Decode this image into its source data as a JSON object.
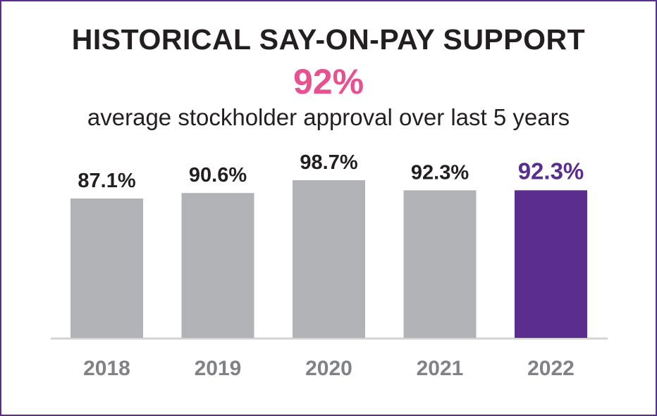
{
  "header": {
    "title": "HISTORICAL SAY-ON-PAY SUPPORT",
    "headline_value": "92%",
    "subtitle": "average stockholder approval over last 5 years"
  },
  "colors": {
    "border": "#5b2d8e",
    "bar_default": "#b1b3b6",
    "bar_highlight": "#5b2d8e",
    "headline": "#e8518f",
    "text_dark": "#231f20",
    "axis_labels": "#808285",
    "baseline": "#d1d3d4"
  },
  "chart_data": {
    "type": "bar",
    "title": "HISTORICAL SAY-ON-PAY SUPPORT",
    "xlabel": "",
    "ylabel": "",
    "categories": [
      "2018",
      "2019",
      "2020",
      "2021",
      "2022"
    ],
    "values": [
      87.1,
      90.6,
      98.7,
      92.3,
      92.3
    ],
    "labels": [
      "87.1%",
      "90.6%",
      "98.7%",
      "92.3%",
      "92.3%"
    ],
    "highlight_index": 4,
    "grid": false,
    "legend": "none"
  }
}
